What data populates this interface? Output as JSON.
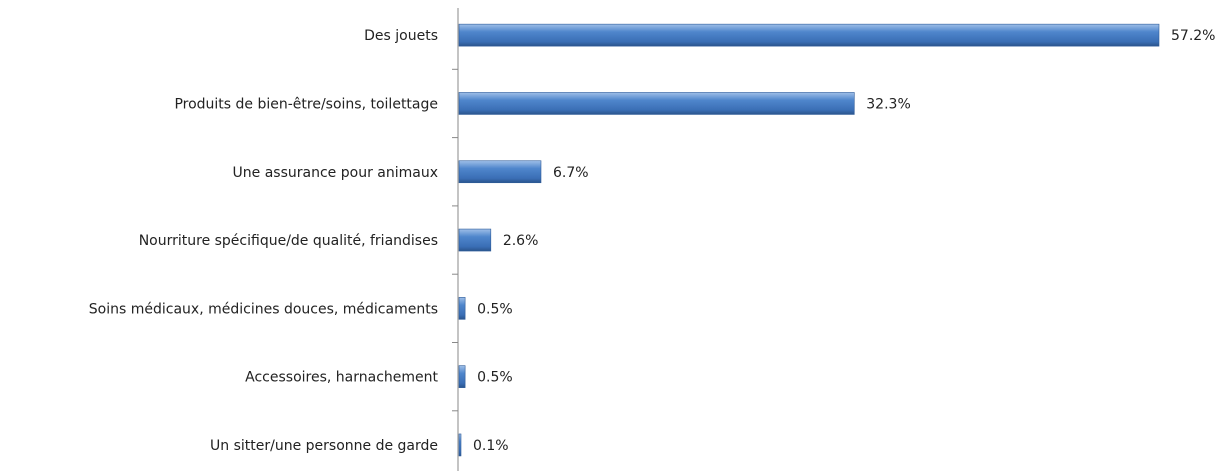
{
  "chart_data": {
    "type": "bar",
    "orientation": "horizontal",
    "categories": [
      "Des jouets",
      "Produits de bien-être/soins, toilettage",
      "Une assurance pour animaux",
      "Nourriture spécifique/de qualité, friandises",
      "Soins médicaux, médicines douces, médicaments",
      "Accessoires, harnachement",
      "Un sitter/une personne de garde"
    ],
    "values": [
      57.2,
      32.3,
      6.7,
      2.6,
      0.5,
      0.5,
      0.1
    ],
    "value_labels": [
      "57.2%",
      "32.3%",
      "6.7%",
      "2.6%",
      "0.5%",
      "0.5%",
      "0.1%"
    ],
    "color": "#4a7ebb"
  }
}
